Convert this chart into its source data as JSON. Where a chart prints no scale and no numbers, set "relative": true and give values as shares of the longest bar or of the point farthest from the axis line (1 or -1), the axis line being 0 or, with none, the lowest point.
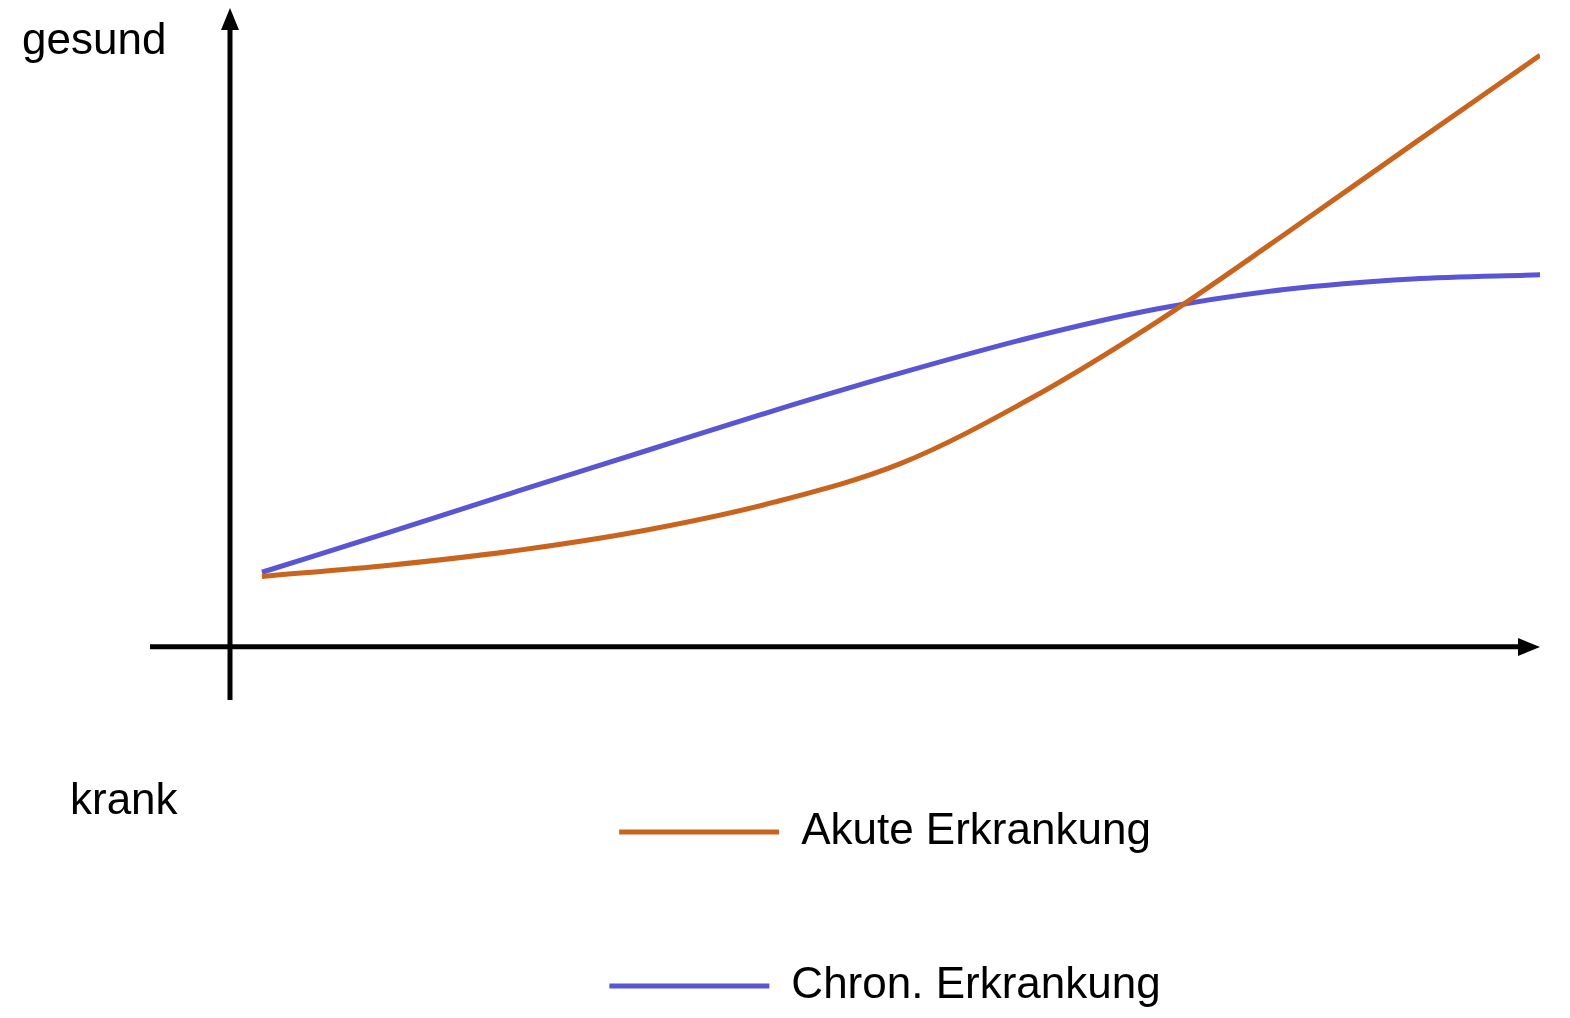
{
  "chart_data": {
    "type": "line",
    "relative": true,
    "categories": [
      null,
      null,
      null,
      null,
      null,
      null,
      null,
      null,
      null,
      null,
      null
    ],
    "annotations": [
      "gesund",
      "krank"
    ],
    "series": [
      {
        "name": "Akute Erkrankung",
        "color": "#c8641e",
        "values": [
          0.119,
          0.138,
          0.163,
          0.197,
          0.244,
          0.31,
          0.418,
          0.549,
          0.697,
          0.849,
          1
        ]
      },
      {
        "name": "Chron. Erkrankung",
        "color": "#5a55d2",
        "values": [
          0.126,
          0.194,
          0.263,
          0.331,
          0.399,
          0.463,
          0.522,
          0.571,
          0.604,
          0.622,
          0.629
        ]
      }
    ],
    "legend": "bottom",
    "marker": "none",
    "line_style": "solid"
  }
}
